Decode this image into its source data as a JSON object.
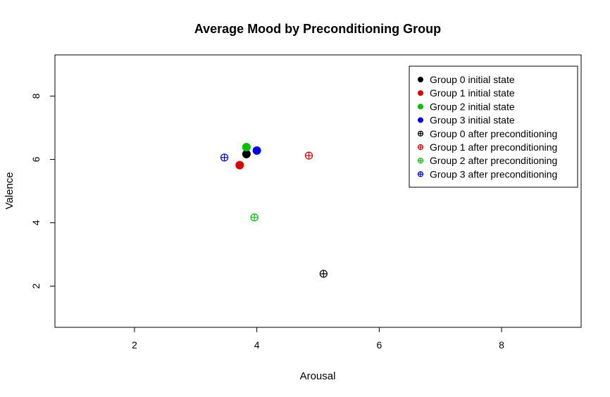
{
  "chart_data": {
    "type": "scatter",
    "title": "Average Mood by Preconditioning Group",
    "xlabel": "Arousal",
    "ylabel": "Valence",
    "xlim": [
      0.7,
      9.3
    ],
    "ylim": [
      0.7,
      9.3
    ],
    "xticks": [
      "2",
      "4",
      "6",
      "8"
    ],
    "yticks": [
      "2",
      "4",
      "6",
      "8"
    ],
    "grid": false,
    "legend_position": "top-right",
    "series": [
      {
        "name": "Group 0 initial state",
        "color": "#000000",
        "marker": "filled-circle",
        "points": [
          {
            "x": 3.83,
            "y": 6.17
          }
        ]
      },
      {
        "name": "Group 1 initial state",
        "color": "#df0000",
        "marker": "filled-circle",
        "points": [
          {
            "x": 3.72,
            "y": 5.82
          }
        ]
      },
      {
        "name": "Group 2 initial state",
        "color": "#00c000",
        "marker": "filled-circle",
        "points": [
          {
            "x": 3.83,
            "y": 6.39
          }
        ]
      },
      {
        "name": "Group 3 initial state",
        "color": "#0000ee",
        "marker": "filled-circle",
        "points": [
          {
            "x": 4.0,
            "y": 6.28
          }
        ]
      },
      {
        "name": "Group 0 after preconditioning",
        "color": "#000000",
        "marker": "circle-plus",
        "points": [
          {
            "x": 5.09,
            "y": 2.39
          }
        ]
      },
      {
        "name": "Group 1 after preconditioning",
        "color": "#df0000",
        "marker": "circle-plus",
        "points": [
          {
            "x": 4.85,
            "y": 6.12
          }
        ]
      },
      {
        "name": "Group 2 after preconditioning",
        "color": "#00c000",
        "marker": "circle-plus",
        "points": [
          {
            "x": 3.96,
            "y": 4.17
          }
        ]
      },
      {
        "name": "Group 3 after preconditioning",
        "color": "#0000ee",
        "marker": "circle-plus",
        "points": [
          {
            "x": 3.47,
            "y": 6.06
          }
        ]
      }
    ]
  }
}
